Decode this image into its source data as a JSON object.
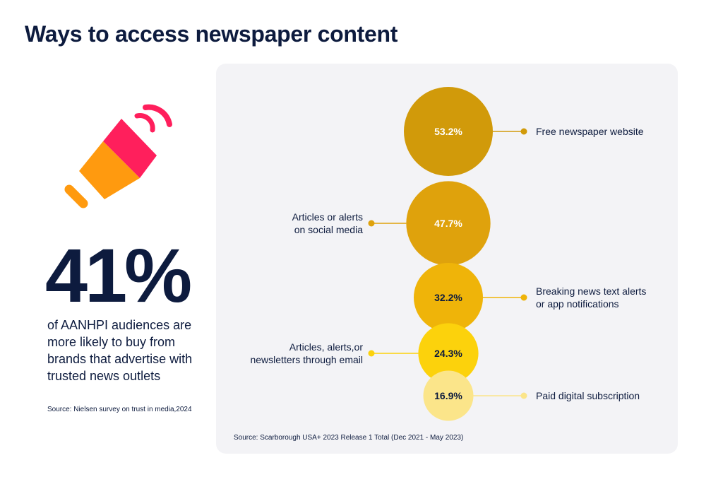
{
  "title": "Ways to access newspaper content",
  "left": {
    "stat": "41%",
    "description": "of AANHPI audiences are more likely to buy from brands that advertise with trusted news outlets",
    "source": "Source: Nielsen survey on trust in media,2024",
    "icon": "megaphone-icon"
  },
  "chart_data": {
    "type": "bubble",
    "title": "Ways to access newspaper content",
    "unit": "%",
    "source": "Source: Scarborough USA+ 2023 Release 1 Total (Dec 2021 - May 2023)",
    "items": [
      {
        "label_lines": [
          "Free newspaper website"
        ],
        "value": 53.2,
        "display": "53.2%",
        "side": "right",
        "color": "#d19a0a",
        "text_color": "#ffffff"
      },
      {
        "label_lines": [
          "Articles or alerts",
          "on social media"
        ],
        "value": 47.7,
        "display": "47.7%",
        "side": "left",
        "color": "#dfa20c",
        "text_color": "#ffffff"
      },
      {
        "label_lines": [
          "Breaking news text alerts",
          "or app notifications"
        ],
        "value": 32.2,
        "display": "32.2%",
        "side": "right",
        "color": "#efb409",
        "text_color": "#0d1b3e"
      },
      {
        "label_lines": [
          "Articles, alerts,or",
          "newsletters through email"
        ],
        "value": 24.3,
        "display": "24.3%",
        "side": "left",
        "color": "#fcd20c",
        "text_color": "#0d1b3e"
      },
      {
        "label_lines": [
          "Paid digital subscription"
        ],
        "value": 16.9,
        "display": "16.9%",
        "side": "right",
        "color": "#fbe58a",
        "text_color": "#0d1b3e"
      }
    ]
  }
}
